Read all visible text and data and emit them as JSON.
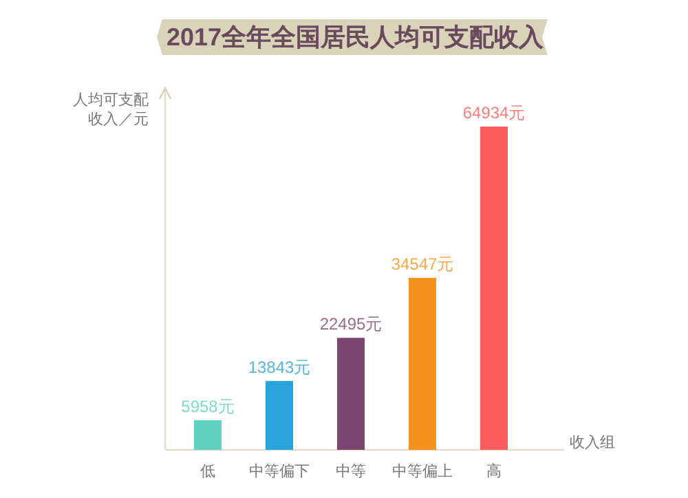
{
  "chart_data": {
    "type": "bar",
    "title": "2017全年全国居民人均可支配收入",
    "ylabel": "人均可支配收入／元",
    "xlabel": "收入组",
    "categories": [
      "低",
      "中等偏下",
      "中等",
      "中等偏上",
      "高"
    ],
    "values": [
      5958,
      13843,
      22495,
      34547,
      64934
    ],
    "colors": [
      "#5fd3c0",
      "#2aa3dc",
      "#7d4670",
      "#f5921e",
      "#fd5c5c"
    ],
    "value_labels": [
      "5958元",
      "13843元",
      "22495元",
      "34547元",
      "64934元"
    ]
  }
}
